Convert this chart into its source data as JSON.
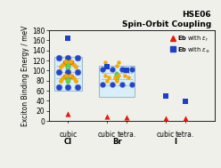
{
  "title_line1": "HSE06",
  "title_line2": "Spin-Orbit Coupling",
  "ylabel": "Exciton Binding Energy / meV",
  "ylim": [
    0,
    180
  ],
  "yticks": [
    0,
    20,
    40,
    60,
    80,
    100,
    120,
    140,
    160,
    180
  ],
  "x_positions": [
    1,
    3,
    4,
    6,
    7
  ],
  "red_triangle_values": [
    15,
    9,
    8,
    6,
    5
  ],
  "blue_square_values": [
    165,
    108,
    100,
    50,
    39
  ],
  "red_color": "#e8190a",
  "blue_color": "#1c3fcc",
  "bg_color": "#f0f0eb",
  "inset_edge_color": "#99bbcc",
  "inset_face_color": "#d8eef8",
  "pb_color": "#2244cc",
  "hal_color": "#f5a800",
  "org_color": "#ee4400",
  "green_color": "#44cc22",
  "dash_color": "#8888aa"
}
